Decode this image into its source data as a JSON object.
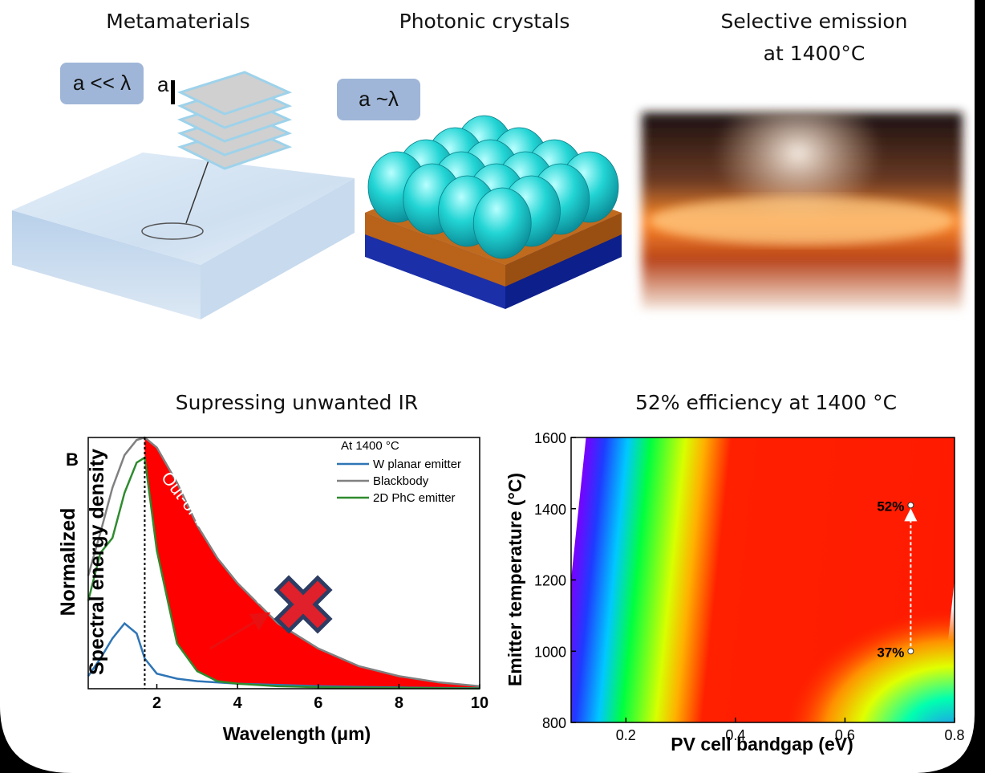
{
  "illustrations": [
    {
      "title": [
        "Metamaterials"
      ],
      "labels": [
        "a << λ",
        "a"
      ]
    },
    {
      "title": [
        "Photonic crystals"
      ],
      "labels": [
        "a ~λ"
      ]
    },
    {
      "title": [
        "Selective emission",
        "at 1400°C"
      ]
    }
  ],
  "chart_data": [
    {
      "type": "line",
      "title": "Supressing unwanted IR",
      "panel_label": "B",
      "xlabel": "Wavelength (μm)",
      "ylabel": [
        "Normalized",
        "Spectral energy density"
      ],
      "legend_title": "At 1400 °C",
      "annotation": "Out-of-band photons",
      "x": [
        0.3,
        0.6,
        0.9,
        1.2,
        1.5,
        1.7,
        2,
        2.5,
        3,
        3.5,
        4,
        5,
        6,
        7,
        8,
        9,
        10
      ],
      "series": [
        {
          "name": "W planar emitter",
          "color": "#2e75b6",
          "values": [
            0.05,
            0.12,
            0.2,
            0.26,
            0.22,
            0.12,
            0.06,
            0.04,
            0.03,
            0.025,
            0.02,
            0.015,
            0.01,
            0.007,
            0.005,
            0.003,
            0.002
          ]
        },
        {
          "name": "Blackbody",
          "color": "#808080",
          "values": [
            0.45,
            0.62,
            0.8,
            0.93,
            0.99,
            1.0,
            0.96,
            0.82,
            0.65,
            0.52,
            0.42,
            0.26,
            0.16,
            0.09,
            0.05,
            0.025,
            0.01
          ]
        },
        {
          "name": "2D PhC emitter",
          "color": "#2e8b2e",
          "values": [
            0.35,
            0.54,
            0.6,
            0.78,
            0.9,
            0.92,
            0.55,
            0.18,
            0.07,
            0.03,
            0.02,
            0.01,
            0.006,
            0.004,
            0.003,
            0.002,
            0.001
          ]
        }
      ],
      "vline": 1.7,
      "xlim": [
        0.3,
        10
      ],
      "xticks": [
        2,
        4,
        6,
        8,
        10
      ],
      "ylim": [
        0,
        1
      ]
    },
    {
      "type": "heatmap",
      "title": "52% efficiency at 1400 °C",
      "xlabel": "PV cell bandgap (eV)",
      "ylabel": "Emitter temperature (°C)",
      "points": {
        "x": [
          0.72,
          0.72
        ],
        "y": [
          1000,
          1410
        ],
        "values": [
          37,
          52
        ],
        "value_labels": [
          "37%",
          "52%"
        ]
      },
      "xlim": [
        0.1,
        0.8
      ],
      "xticks": [
        0.2,
        0.4,
        0.6,
        0.8
      ],
      "ylim": [
        800,
        1600
      ],
      "yticks": [
        800,
        1000,
        1200,
        1400,
        1600
      ]
    }
  ]
}
